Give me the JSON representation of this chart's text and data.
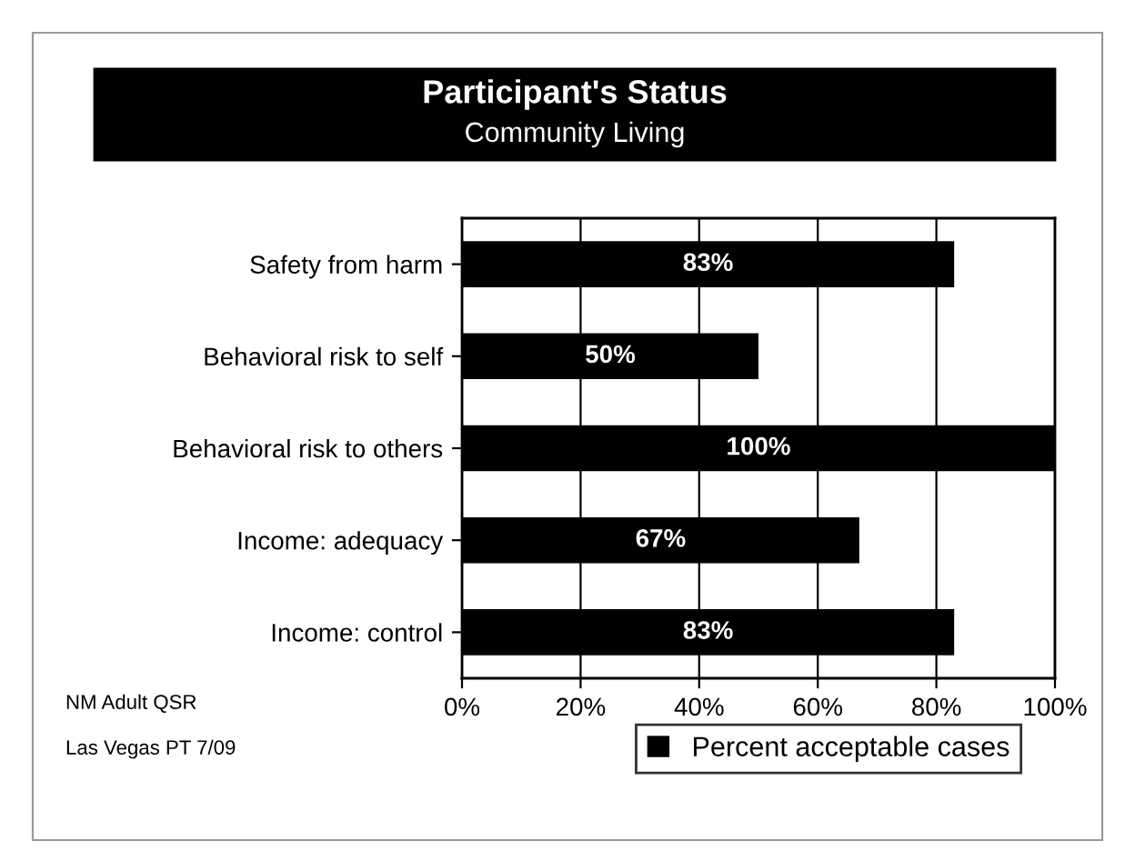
{
  "chart_data": {
    "type": "bar",
    "orientation": "horizontal",
    "title": "Participant's Status",
    "subtitle": "Community Living",
    "categories": [
      "Safety from harm",
      "Behavioral risk to self",
      "Behavioral risk to others",
      "Income: adequacy",
      "Income: control"
    ],
    "series": [
      {
        "name": "Percent acceptable cases",
        "color": "#000000",
        "values": [
          83,
          50,
          100,
          67,
          83
        ]
      }
    ],
    "value_labels": [
      "83%",
      "50%",
      "100%",
      "67%",
      "83%"
    ],
    "xlim": [
      0,
      100
    ],
    "xticks": [
      {
        "value": 0,
        "label": "0%"
      },
      {
        "value": 20,
        "label": "20%"
      },
      {
        "value": 40,
        "label": "40%"
      },
      {
        "value": 60,
        "label": "60%"
      },
      {
        "value": 80,
        "label": "80%"
      },
      {
        "value": 100,
        "label": "100%"
      }
    ],
    "grid": "x",
    "legend": "bottom",
    "annotations": [
      "NM Adult QSR",
      "Las Vegas PT 7/09"
    ]
  }
}
